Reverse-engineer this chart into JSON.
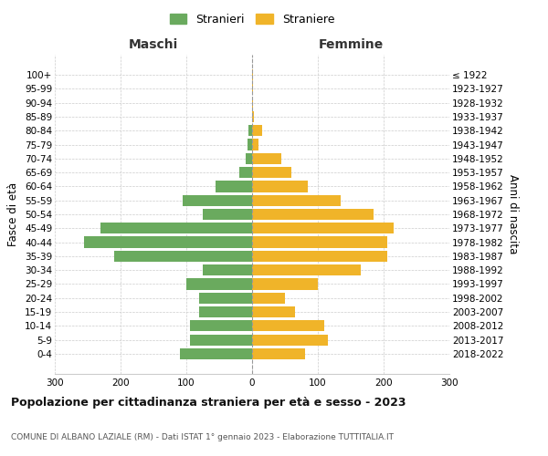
{
  "age_groups": [
    "0-4",
    "5-9",
    "10-14",
    "15-19",
    "20-24",
    "25-29",
    "30-34",
    "35-39",
    "40-44",
    "45-49",
    "50-54",
    "55-59",
    "60-64",
    "65-69",
    "70-74",
    "75-79",
    "80-84",
    "85-89",
    "90-94",
    "95-99",
    "100+"
  ],
  "birth_years": [
    "2018-2022",
    "2013-2017",
    "2008-2012",
    "2003-2007",
    "1998-2002",
    "1993-1997",
    "1988-1992",
    "1983-1987",
    "1978-1982",
    "1973-1977",
    "1968-1972",
    "1963-1967",
    "1958-1962",
    "1953-1957",
    "1948-1952",
    "1943-1947",
    "1938-1942",
    "1933-1937",
    "1928-1932",
    "1923-1927",
    "≤ 1922"
  ],
  "males": [
    110,
    95,
    95,
    80,
    80,
    100,
    75,
    210,
    255,
    230,
    75,
    105,
    55,
    20,
    10,
    7,
    5,
    0,
    0,
    0,
    0
  ],
  "females": [
    80,
    115,
    110,
    65,
    50,
    100,
    165,
    205,
    205,
    215,
    185,
    135,
    85,
    60,
    45,
    10,
    15,
    3,
    2,
    1,
    1
  ],
  "male_color": "#6aaa5e",
  "female_color": "#f0b429",
  "title": "Popolazione per cittadinanza straniera per età e sesso - 2023",
  "subtitle": "COMUNE DI ALBANO LAZIALE (RM) - Dati ISTAT 1° gennaio 2023 - Elaborazione TUTTITALIA.IT",
  "ylabel_left": "Fasce di età",
  "ylabel_right": "Anni di nascita",
  "xlabel_left": "Maschi",
  "xlabel_right": "Femmine",
  "legend_male": "Stranieri",
  "legend_female": "Straniere",
  "xlim": 300,
  "bg_color": "#ffffff",
  "grid_color": "#cccccc",
  "bar_height": 0.8
}
